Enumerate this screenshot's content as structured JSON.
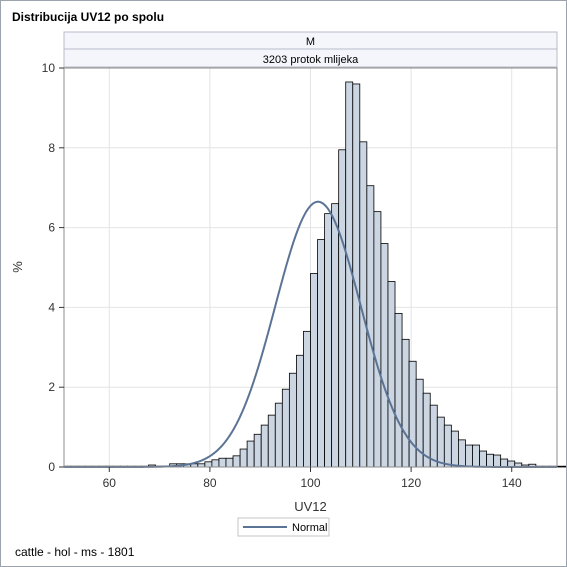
{
  "title": "Distribucija UV12 po spolu",
  "footer": "cattle - hol - ms - 1801",
  "colors": {
    "bar_fill": "#ccd6e3",
    "bar_stroke": "#000000",
    "normal_curve": "#5b7496",
    "grid": "#e4e4e4",
    "header_fill": "#f4f6fb",
    "header_border": "#b8bcc7"
  },
  "chart_data": {
    "type": "bar",
    "subtype": "histogram",
    "panel_header_1": "M",
    "panel_header_2": "3203 protok mlijeka",
    "xlabel": "UV12",
    "ylabel": "%",
    "xlim": [
      51,
      149
    ],
    "ylim": [
      0,
      10
    ],
    "xticks": [
      60,
      80,
      100,
      120,
      140
    ],
    "yticks": [
      0,
      2,
      4,
      6,
      8,
      10
    ],
    "bin_width": 1.4,
    "bins_start": 51.0,
    "values": [
      0.02,
      0.02,
      0.02,
      0.02,
      0.02,
      0.02,
      0.02,
      0.02,
      0.02,
      0.02,
      0.02,
      0.02,
      0.05,
      0.02,
      0.02,
      0.08,
      0.08,
      0.08,
      0.08,
      0.08,
      0.13,
      0.18,
      0.22,
      0.22,
      0.28,
      0.45,
      0.65,
      0.82,
      1.05,
      1.3,
      1.6,
      1.95,
      2.35,
      2.8,
      3.4,
      4.85,
      5.7,
      6.35,
      6.6,
      7.95,
      9.65,
      9.6,
      8.15,
      7.05,
      6.4,
      5.6,
      4.65,
      3.85,
      3.2,
      2.65,
      2.2,
      1.85,
      1.55,
      1.25,
      1.05,
      0.9,
      0.68,
      0.55,
      0.55,
      0.4,
      0.32,
      0.3,
      0.2,
      0.15,
      0.1,
      0.05,
      0.07,
      0.02,
      0.02,
      0.02,
      0.02,
      0.02,
      0.02,
      0.02,
      0.02,
      0.02,
      0.02,
      0.02,
      0.02,
      0.02,
      0.02,
      0.02,
      0.02,
      0.02,
      0.02,
      0.02,
      0.02,
      0.02,
      0.02,
      0.02,
      0.02,
      0.02,
      0.02,
      0.02,
      0.02,
      0.02,
      0.02,
      0.02,
      0.02,
      0.02
    ],
    "normal_curve": {
      "name": "Normal",
      "mean": 101.5,
      "sd": 8.5,
      "peak": 6.65
    },
    "legend": [
      "Normal"
    ],
    "legend_position": "bottom",
    "grid": true
  }
}
